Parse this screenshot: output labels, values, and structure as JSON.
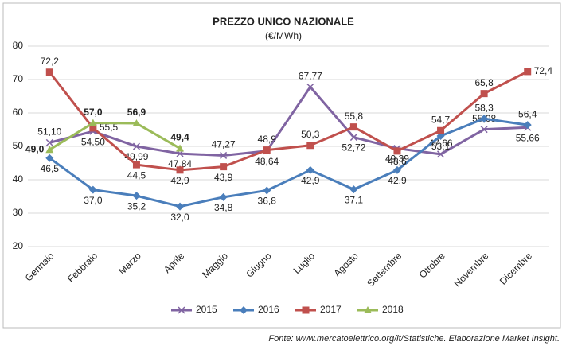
{
  "chart_data": {
    "type": "line",
    "title": "PREZZO UNICO NAZIONALE",
    "subtitle": "(€/MWh)",
    "categories": [
      "Gennaio",
      "Febbraio",
      "Marzo",
      "Aprile",
      "Maggio",
      "Giugno",
      "Luglio",
      "Agosto",
      "Settembre",
      "Ottobre",
      "Novembre",
      "Dicembre"
    ],
    "series": [
      {
        "name": "2015",
        "color": "#8064a2",
        "marker": "x",
        "values": [
          51.1,
          54.5,
          49.99,
          47.84,
          47.27,
          48.64,
          67.77,
          52.72,
          49.39,
          47.66,
          55.08,
          55.66
        ],
        "value_labels": [
          "51,10",
          "54,50",
          "49,99",
          "47,84",
          "47,27",
          "48,64",
          "67,77",
          "52,72",
          "49,39",
          "47,66",
          "55,08",
          "55,66"
        ]
      },
      {
        "name": "2016",
        "color": "#4a7ebb",
        "marker": "diamond",
        "values": [
          46.5,
          37.0,
          35.2,
          32.0,
          34.8,
          36.8,
          42.9,
          37.1,
          42.9,
          53.1,
          58.3,
          56.4
        ],
        "value_labels": [
          "46,5",
          "37,0",
          "35,2",
          "32,0",
          "34,8",
          "36,8",
          "42,9",
          "37,1",
          "42,9",
          "53,1",
          "58,3",
          "56,4"
        ]
      },
      {
        "name": "2017",
        "color": "#c0504d",
        "marker": "square",
        "values": [
          72.2,
          55.5,
          44.5,
          42.9,
          43.9,
          48.9,
          50.3,
          55.8,
          48.6,
          54.7,
          65.8,
          72.4
        ],
        "value_labels": [
          "72,2",
          "55,5",
          "44,5",
          "42,9",
          "43,9",
          "48,9",
          "50,3",
          "55,8",
          "48,6",
          "54,7",
          "65,8",
          "72,4"
        ]
      },
      {
        "name": "2018",
        "color": "#9bbb59",
        "marker": "triangle",
        "values": [
          49.0,
          57.0,
          56.9,
          49.4,
          null,
          null,
          null,
          null,
          null,
          null,
          null,
          null
        ],
        "value_labels": [
          "49,0",
          "57,0",
          "56,9",
          "49,4",
          null,
          null,
          null,
          null,
          null,
          null,
          null,
          null
        ]
      }
    ],
    "ylim": [
      20,
      80
    ],
    "yticks": [
      20,
      30,
      40,
      50,
      60,
      70,
      80
    ],
    "grid": true,
    "legend": "bottom",
    "source": "Fonte: www.mercatoelettrico.org/it/Statistiche. Elaborazione Market Insight."
  }
}
